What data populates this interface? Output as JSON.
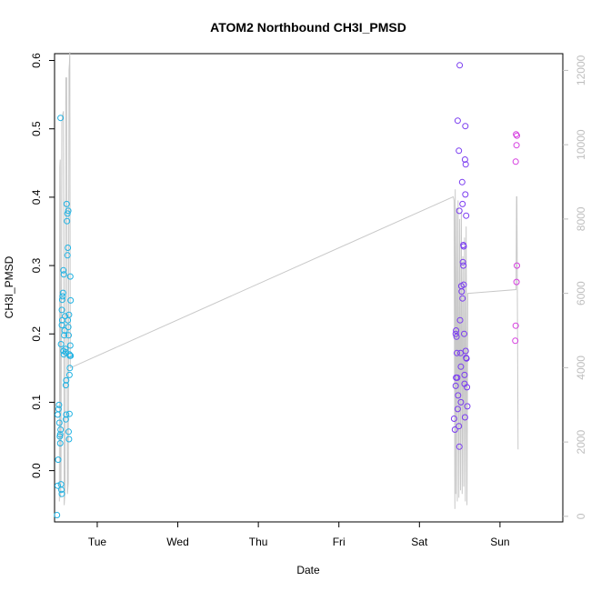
{
  "chart_data": {
    "type": "scatter",
    "title": "ATOM2 Northbound CH3I_PMSD",
    "xlabel": "Date",
    "ylabel": "CH3I_PMSD",
    "x_ticks": [
      "Tue",
      "Wed",
      "Thu",
      "Fri",
      "Sat",
      "Sun"
    ],
    "x_range_days": [
      -0.53,
      5.78
    ],
    "ylim": [
      -0.075,
      0.61
    ],
    "y_ticks": [
      0.0,
      0.1,
      0.2,
      0.3,
      0.4,
      0.5,
      0.6
    ],
    "y2lim": [
      -150,
      12450
    ],
    "y2_ticks": [
      0,
      2000,
      4000,
      6000,
      8000,
      10000,
      12000
    ],
    "y2_tick_labels": [
      "0",
      "2000",
      "4000",
      "6000",
      "8000",
      "10000",
      "12000"
    ],
    "colors": {
      "series1": "#1fb2e3",
      "series2": "#7a3cf0",
      "series3": "#d63fe0",
      "altitude_line": "#c8c8c8"
    },
    "series": [
      {
        "color": "#1fb2e3",
        "points": [
          [
            -0.5,
            -0.065
          ],
          [
            -0.49,
            -0.022
          ],
          [
            -0.485,
            0.016
          ],
          [
            -0.49,
            0.082
          ],
          [
            -0.48,
            0.09
          ],
          [
            -0.475,
            0.096
          ],
          [
            -0.47,
            0.07
          ],
          [
            -0.465,
            0.05
          ],
          [
            -0.46,
            0.053
          ],
          [
            -0.46,
            0.04
          ],
          [
            -0.455,
            0.06
          ],
          [
            -0.45,
            -0.02
          ],
          [
            -0.445,
            -0.028
          ],
          [
            -0.44,
            -0.034
          ],
          [
            -0.45,
            0.185
          ],
          [
            -0.455,
            0.516
          ],
          [
            -0.44,
            0.213
          ],
          [
            -0.435,
            0.22
          ],
          [
            -0.44,
            0.235
          ],
          [
            -0.435,
            0.25
          ],
          [
            -0.43,
            0.255
          ],
          [
            -0.425,
            0.26
          ],
          [
            -0.42,
            0.293
          ],
          [
            -0.415,
            0.287
          ],
          [
            -0.42,
            0.175
          ],
          [
            -0.415,
            0.17
          ],
          [
            -0.41,
            0.198
          ],
          [
            -0.405,
            0.205
          ],
          [
            -0.4,
            0.226
          ],
          [
            -0.395,
            0.178
          ],
          [
            -0.39,
            0.173
          ],
          [
            -0.39,
            0.125
          ],
          [
            -0.385,
            0.132
          ],
          [
            -0.39,
            0.075
          ],
          [
            -0.385,
            0.082
          ],
          [
            -0.38,
            0.39
          ],
          [
            -0.375,
            0.365
          ],
          [
            -0.37,
            0.376
          ],
          [
            -0.37,
            0.315
          ],
          [
            -0.365,
            0.326
          ],
          [
            -0.36,
            0.38
          ],
          [
            -0.365,
            0.22
          ],
          [
            -0.36,
            0.21
          ],
          [
            -0.355,
            0.198
          ],
          [
            -0.35,
            0.228
          ],
          [
            -0.345,
            0.17
          ],
          [
            -0.34,
            0.168
          ],
          [
            -0.345,
            0.14
          ],
          [
            -0.34,
            0.15
          ],
          [
            -0.355,
            0.057
          ],
          [
            -0.35,
            0.046
          ],
          [
            -0.345,
            0.083
          ],
          [
            -0.335,
            0.284
          ],
          [
            -0.33,
            0.249
          ],
          [
            -0.335,
            0.183
          ],
          [
            -0.33,
            0.168
          ]
        ]
      },
      {
        "color": "#7a3cf0",
        "points": [
          [
            4.43,
            0.076
          ],
          [
            4.44,
            0.06
          ],
          [
            4.45,
            0.124
          ],
          [
            4.455,
            0.136
          ],
          [
            4.45,
            0.2
          ],
          [
            4.455,
            0.205
          ],
          [
            4.46,
            0.196
          ],
          [
            4.465,
            0.172
          ],
          [
            4.47,
            0.136
          ],
          [
            4.475,
            0.09
          ],
          [
            4.48,
            0.11
          ],
          [
            4.475,
            0.512
          ],
          [
            4.49,
            0.468
          ],
          [
            4.495,
            0.38
          ],
          [
            4.49,
            0.065
          ],
          [
            4.495,
            0.035
          ],
          [
            4.5,
            0.593
          ],
          [
            4.505,
            0.22
          ],
          [
            4.51,
            0.172
          ],
          [
            4.515,
            0.152
          ],
          [
            4.52,
            0.27
          ],
          [
            4.525,
            0.262
          ],
          [
            4.515,
            0.1
          ],
          [
            4.53,
            0.422
          ],
          [
            4.535,
            0.252
          ],
          [
            4.535,
            0.39
          ],
          [
            4.54,
            0.305
          ],
          [
            4.545,
            0.33
          ],
          [
            4.55,
            0.328
          ],
          [
            4.545,
            0.3
          ],
          [
            4.55,
            0.272
          ],
          [
            4.555,
            0.2
          ],
          [
            4.56,
            0.127
          ],
          [
            4.565,
            0.078
          ],
          [
            4.57,
            0.504
          ],
          [
            4.565,
            0.455
          ],
          [
            4.57,
            0.404
          ],
          [
            4.575,
            0.448
          ],
          [
            4.58,
            0.373
          ],
          [
            4.575,
            0.175
          ],
          [
            4.58,
            0.165
          ],
          [
            4.585,
            0.164
          ],
          [
            4.59,
            0.122
          ],
          [
            4.595,
            0.094
          ],
          [
            4.56,
            0.14
          ]
        ]
      },
      {
        "color": "#d63fe0",
        "points": [
          [
            5.2,
            0.492
          ],
          [
            5.21,
            0.49
          ],
          [
            5.205,
            0.476
          ],
          [
            5.195,
            0.452
          ],
          [
            5.21,
            0.3
          ],
          [
            5.205,
            0.276
          ],
          [
            5.195,
            0.212
          ],
          [
            5.19,
            0.19
          ]
        ]
      }
    ],
    "altitude_line": {
      "color": "#c8c8c8",
      "points": [
        [
          -0.47,
          400
        ],
        [
          -0.465,
          9400
        ],
        [
          -0.46,
          9600
        ],
        [
          -0.455,
          500
        ],
        [
          -0.45,
          1000
        ],
        [
          -0.44,
          10600
        ],
        [
          -0.43,
          10800
        ],
        [
          -0.42,
          10900
        ],
        [
          -0.41,
          300
        ],
        [
          -0.4,
          700
        ],
        [
          -0.39,
          11800
        ],
        [
          -0.38,
          11800
        ],
        [
          -0.37,
          600
        ],
        [
          -0.36,
          900
        ],
        [
          -0.35,
          12000
        ],
        [
          -0.345,
          12200
        ],
        [
          -0.34,
          12500
        ],
        [
          -0.335,
          4000
        ],
        [
          -0.33,
          4000
        ],
        [
          4.42,
          8600
        ],
        [
          4.43,
          8500
        ],
        [
          4.44,
          200
        ],
        [
          4.445,
          8800
        ],
        [
          4.45,
          600
        ],
        [
          4.46,
          8300
        ],
        [
          4.47,
          400
        ],
        [
          4.48,
          8500
        ],
        [
          4.49,
          500
        ],
        [
          4.5,
          8000
        ],
        [
          4.51,
          700
        ],
        [
          4.52,
          8200
        ],
        [
          4.53,
          600
        ],
        [
          4.54,
          7000
        ],
        [
          4.55,
          800
        ],
        [
          4.56,
          7500
        ],
        [
          4.57,
          400
        ],
        [
          4.58,
          7800
        ],
        [
          4.59,
          300
        ],
        [
          4.6,
          6000
        ],
        [
          4.61,
          6000
        ],
        [
          5.2,
          6100
        ],
        [
          5.205,
          8600
        ],
        [
          5.21,
          8600
        ],
        [
          5.225,
          1800
        ]
      ]
    }
  }
}
